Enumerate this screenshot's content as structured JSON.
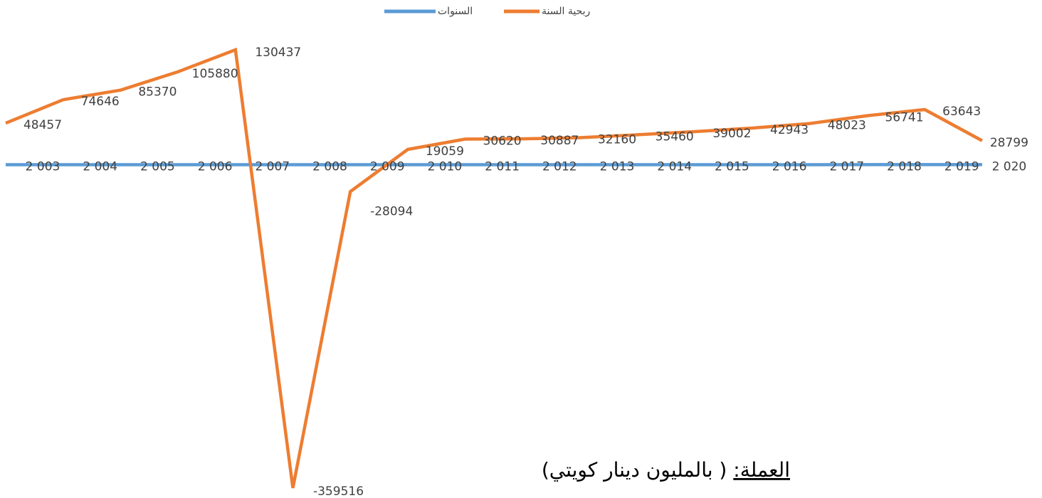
{
  "chart_data": {
    "type": "line",
    "series": [
      {
        "name": "السنوات",
        "color": "#5b9bd5",
        "values": [
          2003,
          2004,
          2005,
          2006,
          2007,
          2008,
          2009,
          2010,
          2011,
          2012,
          2013,
          2014,
          2015,
          2016,
          2017,
          2018,
          2019,
          2020
        ],
        "value_labels": [
          "2 003",
          "2 004",
          "2 005",
          "2 006",
          "2 007",
          "2 008",
          "2 009",
          "2 010",
          "2 011",
          "2 012",
          "2 013",
          "2 014",
          "2 015",
          "2 016",
          "2 017",
          "2 018",
          "2 019",
          "2 020"
        ]
      },
      {
        "name": "ربحية السنة",
        "color": "#ed7d31",
        "values": [
          48457,
          74646,
          85370,
          105880,
          130437,
          -359516,
          -28094,
          19059,
          30620,
          30887,
          32160,
          35460,
          39002,
          42943,
          48023,
          56741,
          63643,
          28799
        ]
      }
    ],
    "ylim": [
      -365000,
      145000
    ],
    "annotation": {
      "label": "العملة:",
      "text": "( بالمليون دينار كويتي)"
    }
  }
}
